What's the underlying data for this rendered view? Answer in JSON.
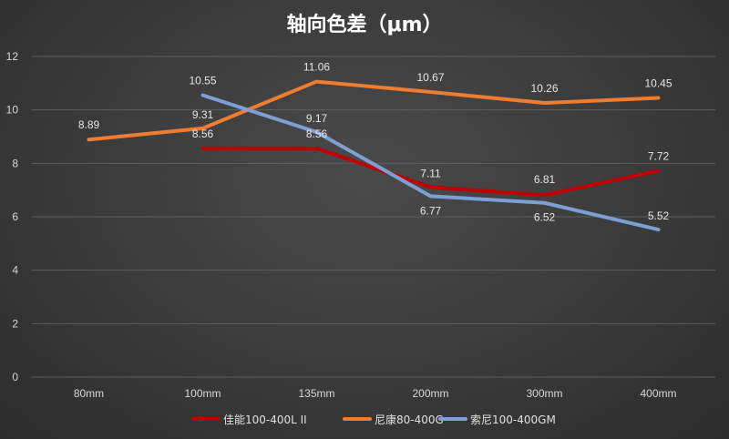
{
  "chart_data": {
    "type": "line",
    "title": "轴向色差（μm）",
    "categories": [
      "80mm",
      "100mm",
      "135mm",
      "200mm",
      "300mm",
      "400mm"
    ],
    "ylim": [
      0,
      12
    ],
    "yticks": [
      0,
      2,
      4,
      6,
      8,
      10,
      12
    ],
    "grid": true,
    "legend_position": "bottom",
    "series": [
      {
        "name": "佳能100-400L II",
        "color": "#c00000",
        "values": [
          null,
          8.56,
          8.56,
          7.11,
          6.81,
          7.72
        ]
      },
      {
        "name": "尼康80-400G",
        "color": "#ed7d31",
        "values": [
          8.89,
          9.31,
          11.06,
          10.67,
          10.26,
          10.45
        ]
      },
      {
        "name": "索尼100-400GM",
        "color": "#7f9fd4",
        "values": [
          null,
          10.55,
          9.17,
          6.77,
          6.52,
          5.52
        ]
      }
    ]
  }
}
